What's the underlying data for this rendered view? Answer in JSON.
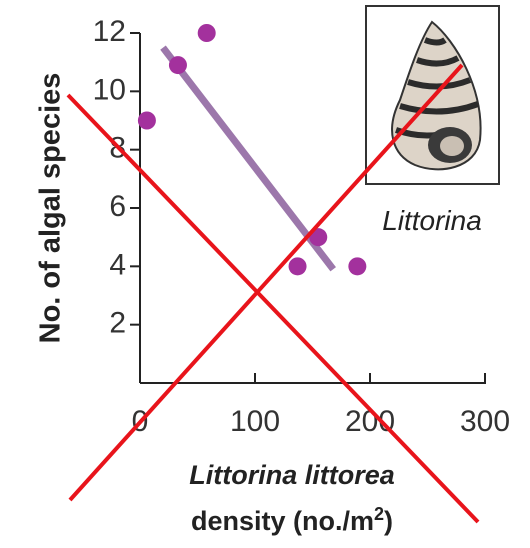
{
  "chart_data": {
    "type": "scatter",
    "x_label": "Littorina littorea",
    "x_label_line2": {
      "text": "density (no./m",
      "sup": "2",
      "end": ")"
    },
    "y_label": "No. of algal species",
    "image_caption": "Littorina",
    "x": [
      6,
      33,
      58,
      137,
      155,
      189
    ],
    "values": [
      9,
      10.9,
      12,
      4,
      5,
      4
    ],
    "color": "#a3319d",
    "trend_line": {
      "x": [
        20,
        168
      ],
      "y": [
        11.5,
        3.9
      ],
      "color": "#9c77ab"
    },
    "xlim": [
      0,
      300
    ],
    "xticks": [
      0,
      100,
      200,
      300
    ],
    "ylim": [
      0,
      12
    ],
    "yticks": [
      2,
      4,
      6,
      8,
      10,
      12
    ]
  }
}
